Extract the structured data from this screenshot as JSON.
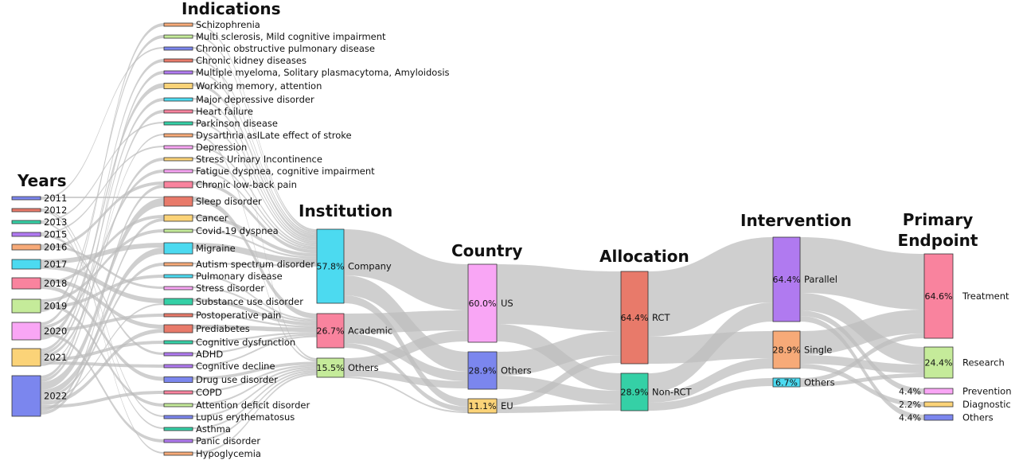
{
  "headers": {
    "years": "Years",
    "indications": "Indications",
    "institution": "Institution",
    "country": "Country",
    "allocation": "Allocation",
    "intervention": "Intervention",
    "primary_endpoint_line1": "Primary",
    "primary_endpoint_line2": "Endpoint"
  },
  "colors": {
    "link": "#bdbdbd",
    "blue": "#7b86ee",
    "red": "#e87a6a",
    "teal": "#35d0a6",
    "purple": "#b07af0",
    "orange": "#f7aa78",
    "cyan": "#4cdaf0",
    "pink": "#f9839e",
    "lightgreen": "#c5eb9a",
    "lightpink": "#f9a6f5",
    "yellow": "#fbd378"
  },
  "chart_data": {
    "type": "sankey",
    "columns": [
      {
        "key": "years",
        "nodes": [
          {
            "label": "2011",
            "color": "blue"
          },
          {
            "label": "2012",
            "color": "red"
          },
          {
            "label": "2013",
            "color": "teal"
          },
          {
            "label": "2015",
            "color": "purple"
          },
          {
            "label": "2016",
            "color": "orange"
          },
          {
            "label": "2017",
            "color": "cyan"
          },
          {
            "label": "2018",
            "color": "pink"
          },
          {
            "label": "2019",
            "color": "lightgreen"
          },
          {
            "label": "2020",
            "color": "lightpink"
          },
          {
            "label": "2021",
            "color": "yellow"
          },
          {
            "label": "2022",
            "color": "blue"
          }
        ]
      },
      {
        "key": "indications",
        "nodes": [
          {
            "label": "Schizophrenia",
            "color": "orange"
          },
          {
            "label": "Multi sclerosis, Mild cognitive impairment",
            "color": "lightgreen"
          },
          {
            "label": "Chronic obstructive pulmonary disease",
            "color": "blue"
          },
          {
            "label": "Chronic kidney diseases",
            "color": "red"
          },
          {
            "label": "Multiple myeloma, Solitary plasmacytoma, Amyloidosis",
            "color": "purple"
          },
          {
            "label": "Working memory, attention",
            "color": "yellow"
          },
          {
            "label": "Major depressive disorder",
            "color": "cyan"
          },
          {
            "label": "Heart failure",
            "color": "pink"
          },
          {
            "label": "Parkinson disease",
            "color": "teal"
          },
          {
            "label": "Dysarthria asILate effect of stroke",
            "color": "orange"
          },
          {
            "label": "Depression",
            "color": "lightpink"
          },
          {
            "label": "Stress Urinary Incontinence",
            "color": "yellow"
          },
          {
            "label": "Fatigue dyspnea, cognitive impairment",
            "color": "lightpink"
          },
          {
            "label": "Chronic low-back pain",
            "color": "pink"
          },
          {
            "label": "Sleep disorder",
            "color": "red"
          },
          {
            "label": "Cancer",
            "color": "yellow"
          },
          {
            "label": "Covid-19 dyspnea",
            "color": "lightgreen"
          },
          {
            "label": "Migraine",
            "color": "cyan"
          },
          {
            "label": "Autism spectrum disorder",
            "color": "orange"
          },
          {
            "label": "Pulmonary disease",
            "color": "cyan"
          },
          {
            "label": "Stress disorder",
            "color": "lightpink"
          },
          {
            "label": "Substance use disorder",
            "color": "teal"
          },
          {
            "label": "Postoperative pain",
            "color": "red"
          },
          {
            "label": "Prediabetes",
            "color": "red"
          },
          {
            "label": "Cognitive dysfunction",
            "color": "teal"
          },
          {
            "label": "ADHD",
            "color": "purple"
          },
          {
            "label": "Cognitive decline",
            "color": "purple"
          },
          {
            "label": "Drug use disorder",
            "color": "blue"
          },
          {
            "label": "COPD",
            "color": "pink"
          },
          {
            "label": "Attention deficit disorder",
            "color": "lightgreen"
          },
          {
            "label": "Lupus erythematosus",
            "color": "blue"
          },
          {
            "label": "Asthma",
            "color": "teal"
          },
          {
            "label": "Panic disorder",
            "color": "purple"
          },
          {
            "label": "Hypoglycemia",
            "color": "orange"
          }
        ]
      },
      {
        "key": "institution",
        "nodes": [
          {
            "label": "Company",
            "pct": "57.8%",
            "color": "cyan"
          },
          {
            "label": "Academic",
            "pct": "26.7%",
            "color": "pink"
          },
          {
            "label": "Others",
            "pct": "15.5%",
            "color": "lightgreen"
          }
        ]
      },
      {
        "key": "country",
        "nodes": [
          {
            "label": "US",
            "pct": "60.0%",
            "color": "lightpink"
          },
          {
            "label": "Others",
            "pct": "28.9%",
            "color": "blue"
          },
          {
            "label": "EU",
            "pct": "11.1%",
            "color": "yellow"
          }
        ]
      },
      {
        "key": "allocation",
        "nodes": [
          {
            "label": "RCT",
            "pct": "64.4%",
            "color": "red"
          },
          {
            "label": "Non-RCT",
            "pct": "28.9%",
            "color": "teal"
          }
        ]
      },
      {
        "key": "intervention",
        "nodes": [
          {
            "label": "Parallel",
            "pct": "64.4%",
            "color": "purple"
          },
          {
            "label": "Single",
            "pct": "28.9%",
            "color": "orange"
          },
          {
            "label": "Others",
            "pct": "6.7%",
            "color": "cyan"
          }
        ]
      },
      {
        "key": "primary_endpoint",
        "nodes": [
          {
            "label": "Treatment",
            "pct": "64.6%",
            "color": "pink"
          },
          {
            "label": "Research",
            "pct": "24.4%",
            "color": "lightgreen"
          },
          {
            "label": "Prevention",
            "pct": "4.4%",
            "color": "lightpink"
          },
          {
            "label": "Diagnostic",
            "pct": "2.2%",
            "color": "yellow"
          },
          {
            "label": "Others",
            "pct": "4.4%",
            "color": "blue"
          }
        ]
      }
    ],
    "flows": [
      {
        "from": "Company",
        "to": "US"
      },
      {
        "from": "Company",
        "to": "Others (country)"
      },
      {
        "from": "Company",
        "to": "EU"
      },
      {
        "from": "Academic",
        "to": "US"
      },
      {
        "from": "Academic",
        "to": "Others (country)"
      },
      {
        "from": "Academic",
        "to": "EU"
      },
      {
        "from": "Others (institution)",
        "to": "US"
      },
      {
        "from": "Others (institution)",
        "to": "Others (country)"
      },
      {
        "from": "Others (institution)",
        "to": "EU"
      },
      {
        "from": "US",
        "to": "RCT"
      },
      {
        "from": "US",
        "to": "Non-RCT"
      },
      {
        "from": "Others (country)",
        "to": "RCT"
      },
      {
        "from": "Others (country)",
        "to": "Non-RCT"
      },
      {
        "from": "EU",
        "to": "RCT"
      },
      {
        "from": "EU",
        "to": "Non-RCT"
      },
      {
        "from": "RCT",
        "to": "Parallel"
      },
      {
        "from": "RCT",
        "to": "Single"
      },
      {
        "from": "Non-RCT",
        "to": "Parallel"
      },
      {
        "from": "Non-RCT",
        "to": "Single"
      },
      {
        "from": "Non-RCT",
        "to": "Others (intervention)"
      },
      {
        "from": "Parallel",
        "to": "Treatment"
      },
      {
        "from": "Parallel",
        "to": "Research"
      },
      {
        "from": "Parallel",
        "to": "Prevention"
      },
      {
        "from": "Parallel",
        "to": "Others (endpoint)"
      },
      {
        "from": "Single",
        "to": "Treatment"
      },
      {
        "from": "Single",
        "to": "Research"
      },
      {
        "from": "Single",
        "to": "Diagnostic"
      },
      {
        "from": "Others (intervention)",
        "to": "Treatment"
      },
      {
        "from": "Others (intervention)",
        "to": "Research"
      }
    ]
  }
}
